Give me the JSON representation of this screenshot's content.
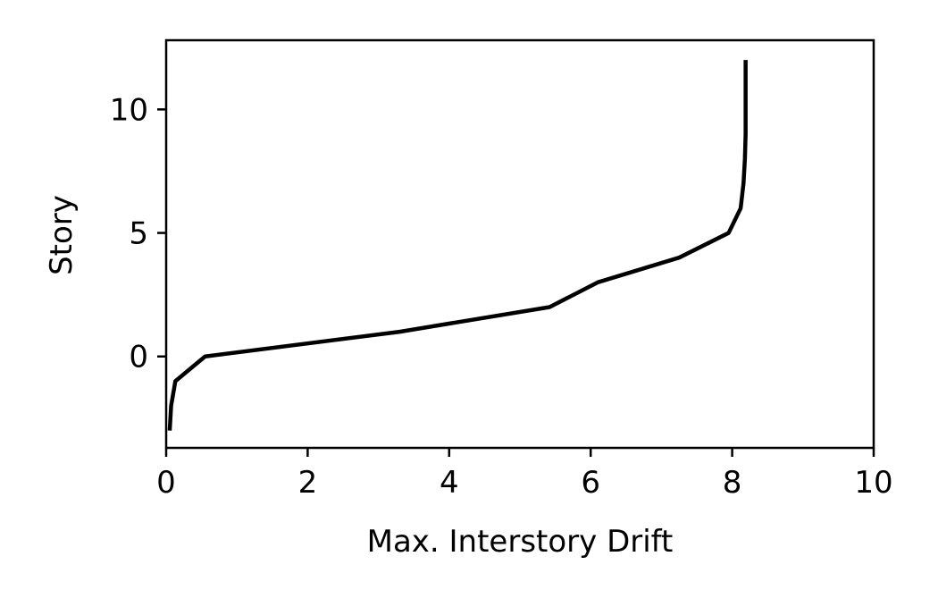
{
  "chart_data": {
    "type": "line",
    "title": "",
    "xlabel": "Max. Interstory Drift",
    "ylabel": "Story",
    "xlim": [
      0,
      10
    ],
    "ylim": [
      -3.7,
      12.8
    ],
    "xticks": [
      {
        "value": 0,
        "label": "0"
      },
      {
        "value": 2,
        "label": "2"
      },
      {
        "value": 4,
        "label": "4"
      },
      {
        "value": 6,
        "label": "6"
      },
      {
        "value": 8,
        "label": "8"
      },
      {
        "value": 10,
        "label": "10"
      }
    ],
    "yticks": [
      {
        "value": 0,
        "label": "0"
      },
      {
        "value": 5,
        "label": "5"
      },
      {
        "value": 10,
        "label": "10"
      }
    ],
    "grid": false,
    "series": [
      {
        "color": "#000000",
        "points": [
          {
            "x": 0.05,
            "y": -3
          },
          {
            "x": 0.07,
            "y": -2
          },
          {
            "x": 0.13,
            "y": -1
          },
          {
            "x": 0.55,
            "y": 0
          },
          {
            "x": 3.3,
            "y": 1
          },
          {
            "x": 5.42,
            "y": 2
          },
          {
            "x": 6.1,
            "y": 3
          },
          {
            "x": 7.25,
            "y": 4
          },
          {
            "x": 7.95,
            "y": 5
          },
          {
            "x": 8.12,
            "y": 6
          },
          {
            "x": 8.16,
            "y": 7
          },
          {
            "x": 8.18,
            "y": 8
          },
          {
            "x": 8.19,
            "y": 9
          },
          {
            "x": 8.19,
            "y": 10
          },
          {
            "x": 8.19,
            "y": 11
          },
          {
            "x": 8.19,
            "y": 12
          }
        ]
      }
    ]
  }
}
